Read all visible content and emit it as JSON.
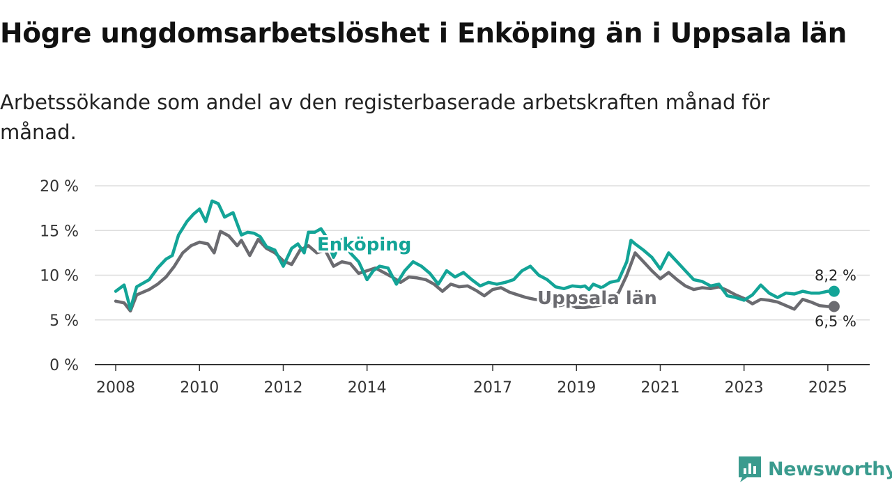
{
  "title": "Högre ungdomsarbetslöshet i Enköping än i Uppsala län",
  "subtitle": "Arbetssökande som andel av den registerbaserade arbetskraften månad för månad.",
  "brand": {
    "name": "Newsworthy",
    "color": "#3a9b8e",
    "icon": "newsworthy-logo-icon"
  },
  "colors": {
    "enkoping": "#13a497",
    "uppsala": "#6b6b70",
    "grid": "#dddddd",
    "axis": "#333333"
  },
  "chart_data": {
    "type": "line",
    "title": "Högre ungdomsarbetslöshet i Enköping än i Uppsala län",
    "xlabel": "",
    "ylabel": "",
    "x_range": [
      2007.5,
      2026.0
    ],
    "ylim": [
      0,
      20
    ],
    "y_ticks": [
      0,
      5,
      10,
      15,
      20
    ],
    "y_tick_labels": [
      "0 %",
      "5 %",
      "10 %",
      "15 %",
      "20 %"
    ],
    "x_ticks": [
      2008,
      2010,
      2012,
      2014,
      2017,
      2019,
      2021,
      2023,
      2025
    ],
    "x_tick_labels": [
      "2008",
      "2010",
      "2012",
      "2014",
      "2017",
      "2019",
      "2021",
      "2023",
      "2025"
    ],
    "grid": "horizontal",
    "legend": "inline labels",
    "series": [
      {
        "name": "Enköping",
        "key": "enkoping",
        "end_label": "8,2 %",
        "x": [
          2008.0,
          2008.2,
          2008.35,
          2008.5,
          2008.8,
          2009.0,
          2009.2,
          2009.35,
          2009.5,
          2009.7,
          2009.85,
          2010.0,
          2010.15,
          2010.3,
          2010.45,
          2010.6,
          2010.8,
          2011.0,
          2011.15,
          2011.3,
          2011.45,
          2011.6,
          2011.8,
          2012.0,
          2012.2,
          2012.35,
          2012.5,
          2012.6,
          2012.75,
          2012.9,
          2013.0,
          2013.2,
          2013.4,
          2013.6,
          2013.8,
          2014.0,
          2014.15,
          2014.3,
          2014.5,
          2014.7,
          2014.9,
          2015.1,
          2015.3,
          2015.5,
          2015.7,
          2015.9,
          2016.1,
          2016.3,
          2016.5,
          2016.7,
          2016.9,
          2017.1,
          2017.3,
          2017.5,
          2017.7,
          2017.9,
          2018.1,
          2018.3,
          2018.5,
          2018.7,
          2018.9,
          2019.1,
          2019.2,
          2019.3,
          2019.4,
          2019.6,
          2019.8,
          2020.0,
          2020.2,
          2020.3,
          2020.4,
          2020.6,
          2020.8,
          2021.0,
          2021.2,
          2021.4,
          2021.6,
          2021.8,
          2022.0,
          2022.2,
          2022.4,
          2022.6,
          2022.8,
          2023.0,
          2023.2,
          2023.4,
          2023.6,
          2023.8,
          2024.0,
          2024.2,
          2024.4,
          2024.6,
          2024.8,
          2025.0,
          2025.15
        ],
        "y": [
          8.2,
          8.9,
          6.2,
          8.7,
          9.5,
          10.8,
          11.8,
          12.2,
          14.5,
          16.0,
          16.8,
          17.4,
          16.0,
          18.3,
          18.0,
          16.5,
          17.0,
          14.5,
          14.8,
          14.7,
          14.3,
          13.2,
          12.8,
          11.0,
          13.0,
          13.5,
          12.5,
          14.8,
          14.8,
          15.2,
          14.5,
          12.0,
          14.0,
          12.5,
          11.5,
          9.5,
          10.5,
          11.0,
          10.8,
          9.0,
          10.5,
          11.5,
          11.0,
          10.2,
          9.0,
          10.5,
          9.8,
          10.3,
          9.5,
          8.8,
          9.2,
          9.0,
          9.2,
          9.5,
          10.5,
          11.0,
          10.0,
          9.5,
          8.7,
          8.5,
          8.8,
          8.7,
          8.8,
          8.4,
          9.0,
          8.6,
          9.2,
          9.4,
          11.5,
          13.9,
          13.5,
          12.8,
          12.0,
          10.7,
          12.5,
          11.5,
          10.5,
          9.5,
          9.3,
          8.8,
          9.0,
          7.7,
          7.5,
          7.2,
          7.8,
          8.9,
          8.0,
          7.5,
          8.0,
          7.9,
          8.2,
          8.0,
          8.0,
          8.2,
          8.2
        ]
      },
      {
        "name": "Uppsala län",
        "key": "uppsala",
        "end_label": "6,5 %",
        "x": [
          2008.0,
          2008.2,
          2008.35,
          2008.5,
          2008.8,
          2009.0,
          2009.2,
          2009.4,
          2009.6,
          2009.8,
          2010.0,
          2010.2,
          2010.35,
          2010.5,
          2010.7,
          2010.9,
          2011.0,
          2011.2,
          2011.4,
          2011.6,
          2011.8,
          2012.0,
          2012.2,
          2012.4,
          2012.6,
          2012.8,
          2013.0,
          2013.2,
          2013.4,
          2013.6,
          2013.8,
          2014.0,
          2014.2,
          2014.4,
          2014.6,
          2014.8,
          2015.0,
          2015.2,
          2015.4,
          2015.6,
          2015.8,
          2016.0,
          2016.2,
          2016.4,
          2016.6,
          2016.8,
          2017.0,
          2017.2,
          2017.4,
          2017.6,
          2017.8,
          2018.0,
          2018.2,
          2018.4,
          2018.6,
          2018.8,
          2019.0,
          2019.2,
          2019.4,
          2019.6,
          2019.8,
          2020.0,
          2020.2,
          2020.4,
          2020.6,
          2020.8,
          2021.0,
          2021.2,
          2021.4,
          2021.6,
          2021.8,
          2022.0,
          2022.2,
          2022.4,
          2022.6,
          2022.8,
          2023.0,
          2023.2,
          2023.4,
          2023.6,
          2023.8,
          2024.0,
          2024.2,
          2024.4,
          2024.6,
          2024.8,
          2025.0,
          2025.15
        ],
        "y": [
          7.1,
          6.9,
          6.0,
          7.8,
          8.4,
          9.0,
          9.8,
          11.0,
          12.5,
          13.3,
          13.7,
          13.5,
          12.5,
          14.9,
          14.4,
          13.3,
          13.9,
          12.2,
          14.0,
          13.0,
          12.5,
          11.6,
          11.2,
          12.8,
          13.3,
          12.5,
          12.8,
          11.0,
          11.5,
          11.3,
          10.2,
          10.5,
          10.8,
          10.3,
          9.8,
          9.2,
          9.8,
          9.7,
          9.5,
          9.0,
          8.2,
          9.0,
          8.7,
          8.8,
          8.3,
          7.7,
          8.4,
          8.6,
          8.1,
          7.8,
          7.5,
          7.3,
          7.2,
          7.0,
          6.6,
          6.8,
          6.4,
          6.4,
          6.5,
          6.7,
          7.5,
          8.0,
          10.0,
          12.5,
          11.5,
          10.5,
          9.6,
          10.3,
          9.5,
          8.8,
          8.4,
          8.6,
          8.5,
          8.7,
          8.3,
          7.8,
          7.4,
          6.8,
          7.3,
          7.2,
          7.0,
          6.6,
          6.2,
          7.3,
          7.0,
          6.6,
          6.5,
          6.5
        ]
      }
    ]
  }
}
